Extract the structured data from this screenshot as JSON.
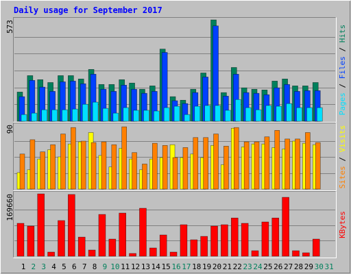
{
  "chart_data": [
    {
      "type": "bar",
      "title": "Daily usage for September 2017",
      "categories": [
        "1",
        "2",
        "3",
        "4",
        "5",
        "6",
        "7",
        "8",
        "9",
        "10",
        "11",
        "12",
        "13",
        "14",
        "15",
        "16",
        "17",
        "18",
        "19",
        "20",
        "21",
        "22",
        "23",
        "24",
        "25",
        "26",
        "27",
        "28",
        "29",
        "30",
        "31"
      ],
      "label_colors": [
        "#000000",
        "#00805c",
        "#00805c",
        "#000000",
        "#000000",
        "#000000",
        "#000000",
        "#000000",
        "#00805c",
        "#00805c",
        "#000000",
        "#000000",
        "#000000",
        "#000000",
        "#000000",
        "#00805c",
        "#00805c",
        "#000000",
        "#000000",
        "#000000",
        "#000000",
        "#000000",
        "#00805c",
        "#00805c",
        "#000000",
        "#000000",
        "#000000",
        "#000000",
        "#000000",
        "#00805c",
        "#00805c"
      ],
      "legend_separator": " / ",
      "ylim": [
        0,
        573
      ],
      "yticks": [
        573
      ],
      "series": [
        {
          "name": "Hits",
          "color": "#00805c",
          "values": [
            165,
            258,
            235,
            219,
            258,
            258,
            239,
            293,
            208,
            208,
            235,
            216,
            181,
            200,
            408,
            139,
            119,
            181,
            273,
            573,
            162,
            304,
            189,
            181,
            177,
            227,
            239,
            200,
            200,
            219,
            0
          ]
        },
        {
          "name": "Files",
          "color": "#0040ff",
          "values": [
            139,
            231,
            193,
            169,
            223,
            227,
            212,
            266,
            181,
            169,
            204,
            181,
            158,
            169,
            389,
            116,
            100,
            162,
            250,
            539,
            142,
            266,
            162,
            158,
            150,
            189,
            208,
            169,
            173,
            173,
            0
          ]
        },
        {
          "name": "Pages",
          "color": "#00e0ff",
          "values": [
            38,
            46,
            65,
            65,
            65,
            69,
            96,
            108,
            73,
            46,
            77,
            62,
            62,
            58,
            77,
            85,
            38,
            85,
            89,
            89,
            62,
            123,
            77,
            65,
            89,
            85,
            100,
            77,
            77,
            77,
            0
          ]
        }
      ]
    },
    {
      "type": "bar",
      "legend_separator": " / ",
      "ylim": [
        0,
        90
      ],
      "yticks": [
        90
      ],
      "series": [
        {
          "name": "Visits",
          "color": "#ffff00",
          "values": [
            23,
            27,
            42,
            55,
            45,
            63,
            66,
            79,
            47,
            31,
            57,
            42,
            27,
            42,
            44,
            62,
            44,
            49,
            44,
            61,
            34,
            85,
            59,
            63,
            63,
            58,
            56,
            67,
            64,
            62,
            0
          ]
        },
        {
          "name": "Sites",
          "color": "#ff8000",
          "values": [
            49,
            69,
            52,
            62,
            77,
            86,
            67,
            65,
            66,
            62,
            87,
            51,
            35,
            64,
            61,
            44,
            58,
            72,
            72,
            77,
            60,
            86,
            66,
            66,
            73,
            82,
            70,
            70,
            79,
            65,
            0
          ]
        }
      ]
    },
    {
      "type": "bar",
      "ylim": [
        0,
        169660
      ],
      "yticks": [
        169660
      ],
      "series": [
        {
          "name": "KBytes",
          "color": "#ff0000",
          "values": [
            89500,
            82000,
            169660,
            11200,
            97000,
            168000,
            52000,
            16800,
            113700,
            46600,
            117400,
            7500,
            130500,
            22400,
            57800,
            11200,
            85700,
            44700,
            54000,
            82000,
            85700,
            104000,
            89500,
            14900,
            93200,
            104000,
            160300,
            14900,
            9300,
            46600,
            0
          ]
        }
      ]
    }
  ]
}
